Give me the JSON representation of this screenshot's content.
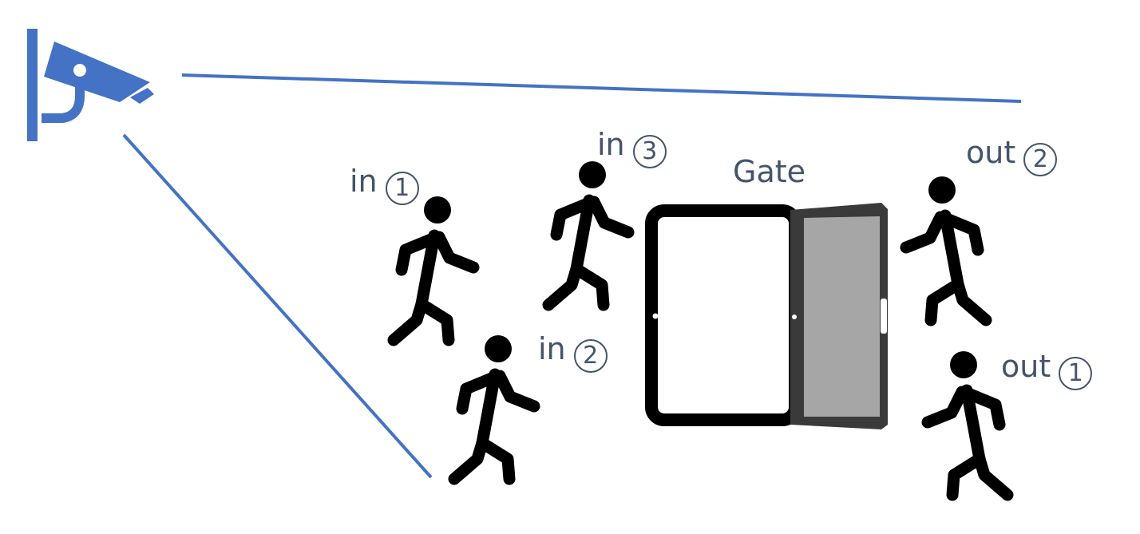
{
  "colors": {
    "camera": "#4472c4",
    "view_line": "#4472c4",
    "person": "#000000",
    "label_text": "#44546a",
    "gate_frame": "#000000",
    "door_frame": "#3a3a3a",
    "door_panel": "#a6a6a6"
  },
  "icons": {
    "camera": "security-camera-icon",
    "person": "walking-person-icon",
    "gate": "open-door-icon"
  },
  "gate": {
    "label": "Gate"
  },
  "people": [
    {
      "id": "in-1",
      "direction": "in",
      "word": "in",
      "number": "1"
    },
    {
      "id": "in-2",
      "direction": "in",
      "word": "in",
      "number": "2"
    },
    {
      "id": "in-3",
      "direction": "in",
      "word": "in",
      "number": "3"
    },
    {
      "id": "out-1",
      "direction": "out",
      "word": "out",
      "number": "1"
    },
    {
      "id": "out-2",
      "direction": "out",
      "word": "out",
      "number": "2"
    }
  ]
}
